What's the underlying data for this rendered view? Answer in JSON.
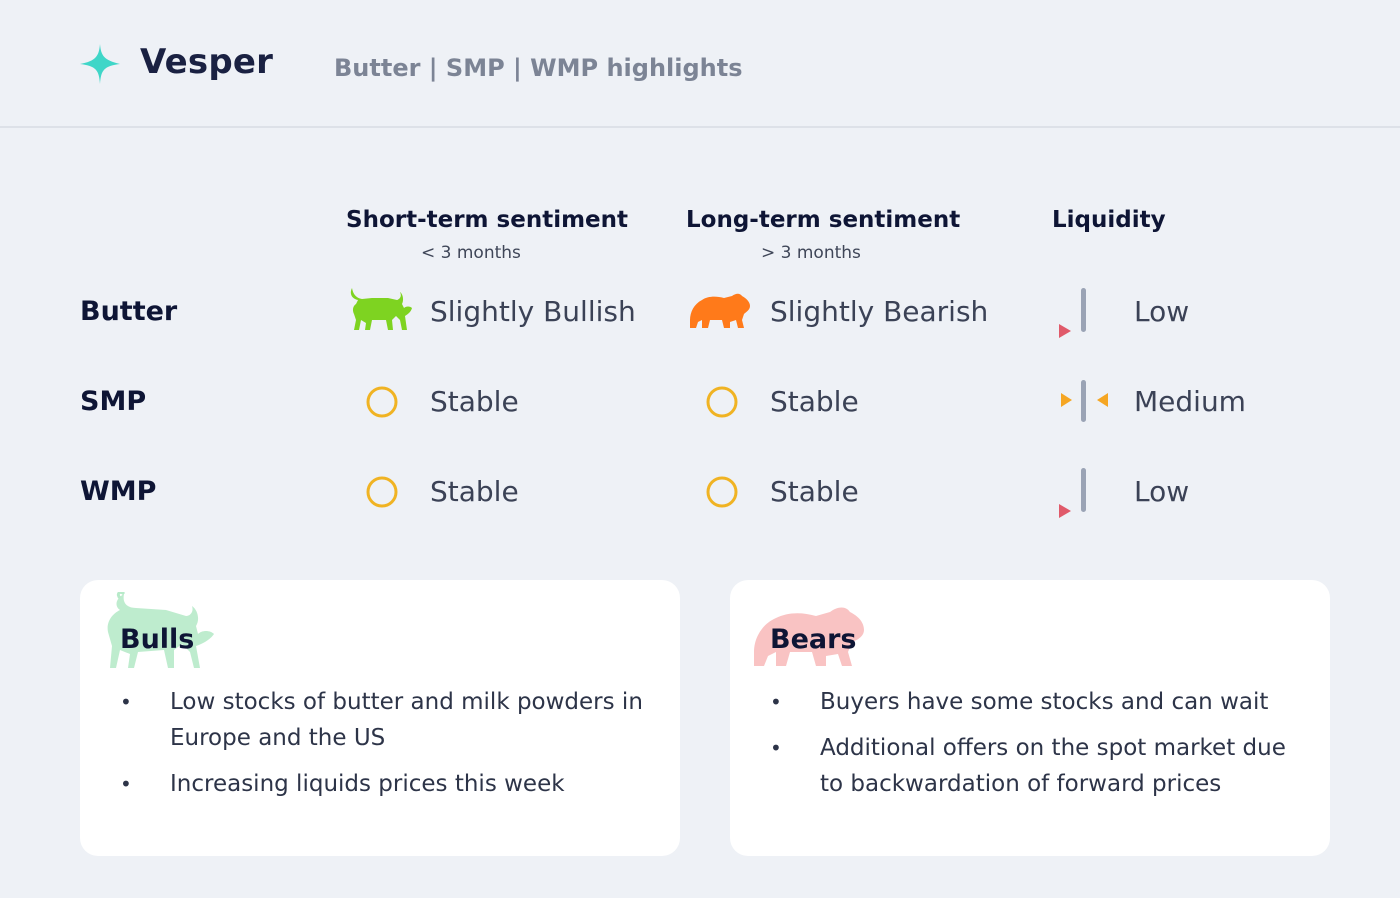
{
  "header": {
    "brand": "Vesper",
    "subtitle": "Butter | SMP | WMP highlights"
  },
  "columns": [
    {
      "title": "Short-term sentiment",
      "sub": "< 3 months"
    },
    {
      "title": "Long-term sentiment",
      "sub": "> 3 months"
    },
    {
      "title": "Liquidity",
      "sub": ""
    }
  ],
  "rows": [
    {
      "label": "Butter",
      "short": "Slightly Bullish",
      "short_icon": "bull-icon",
      "long": "Slightly Bearish",
      "long_icon": "bear-icon",
      "liquidity": "Low",
      "liquidity_icon": "liquidity-low-icon"
    },
    {
      "label": "SMP",
      "short": "Stable",
      "short_icon": "stable-circle-icon",
      "long": "Stable",
      "long_icon": "stable-circle-icon",
      "liquidity": "Medium",
      "liquidity_icon": "liquidity-medium-icon"
    },
    {
      "label": "WMP",
      "short": "Stable",
      "short_icon": "stable-circle-icon",
      "long": "Stable",
      "long_icon": "stable-circle-icon",
      "liquidity": "Low",
      "liquidity_icon": "liquidity-low-icon"
    }
  ],
  "bulls": {
    "title": "Bulls",
    "items": [
      "Low stocks of butter and milk powders in Europe and the US",
      "Increasing liquids prices this week"
    ]
  },
  "bears": {
    "title": "Bears",
    "items": [
      "Buyers have some stocks and can wait",
      "Additional offers on the spot market due to backwardation of forward prices"
    ]
  },
  "colors": {
    "bull": "#7ed321",
    "bear": "#ff7a1a",
    "stable": "#f0b323",
    "low_marker": "#e05a6a",
    "medium_marker": "#f5a623",
    "accent": "#3fd6c8"
  }
}
